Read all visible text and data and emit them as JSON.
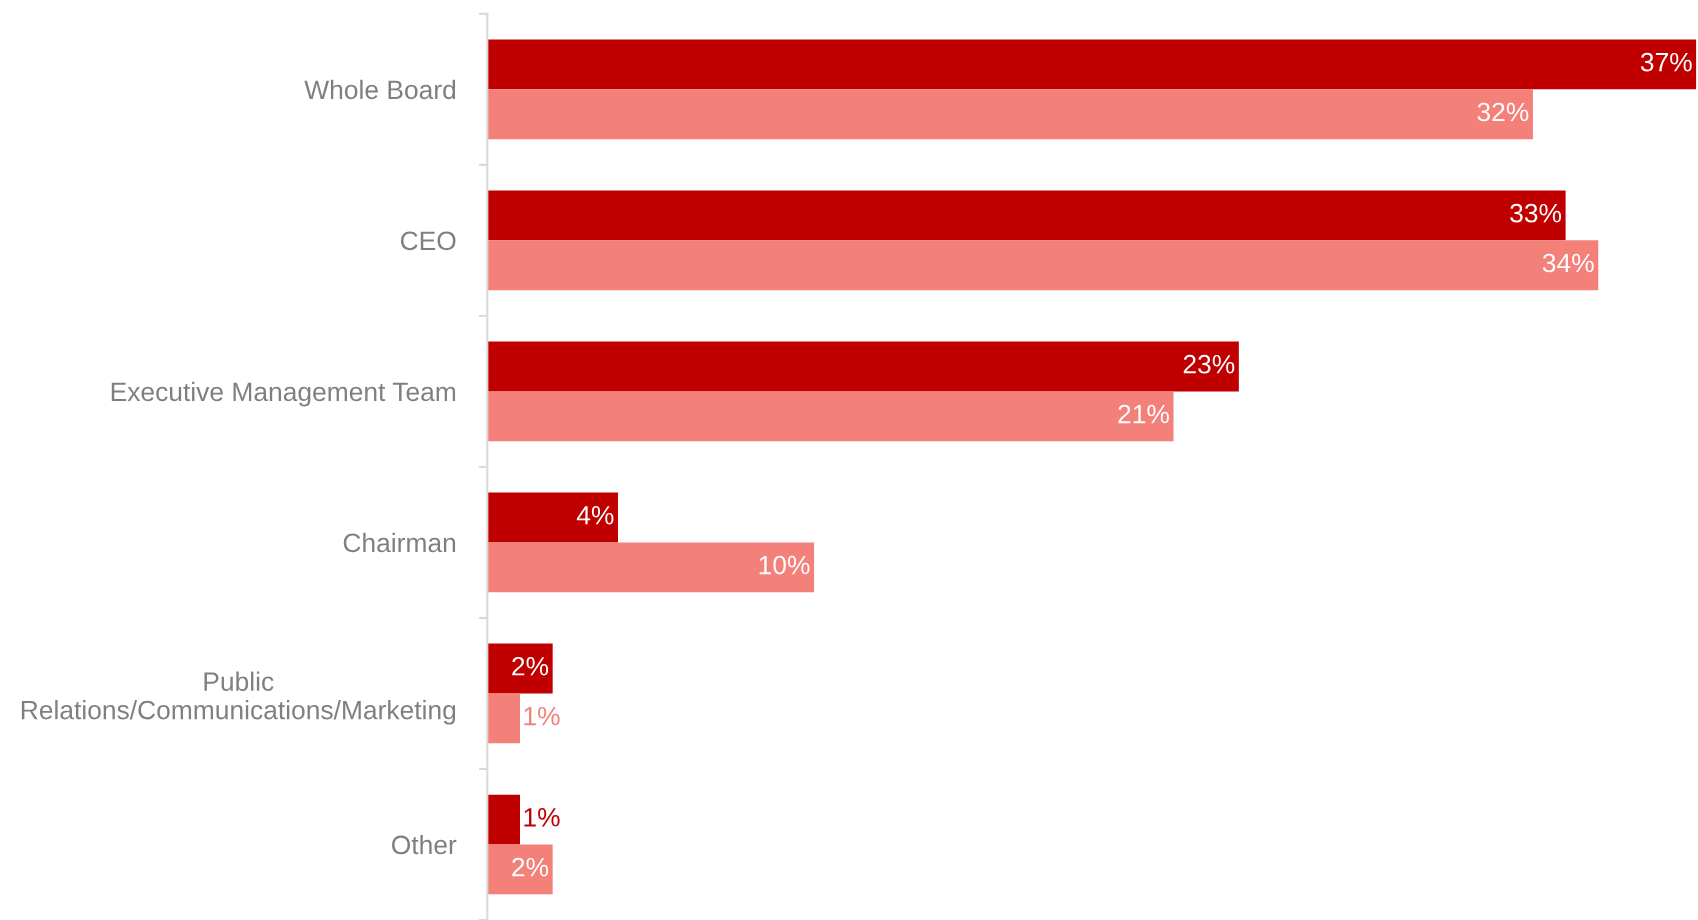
{
  "chart_data": {
    "type": "bar",
    "orientation": "horizontal",
    "grid": false,
    "legend": false,
    "categories": [
      "Whole Board",
      "CEO",
      "Executive Management Team",
      "Chairman",
      "Public\nRelations/Communications/Marketing",
      "Other"
    ],
    "series": [
      {
        "color": "#c00000",
        "values": [
          37,
          33,
          23,
          4,
          2,
          1
        ],
        "value_labels": [
          "37%",
          "33%",
          "23%",
          "4%",
          "2%",
          "1%"
        ]
      },
      {
        "color": "#f4807a",
        "values": [
          32,
          34,
          21,
          10,
          1,
          2
        ],
        "value_labels": [
          "32%",
          "34%",
          "21%",
          "10%",
          "1%",
          "2%"
        ]
      }
    ]
  }
}
